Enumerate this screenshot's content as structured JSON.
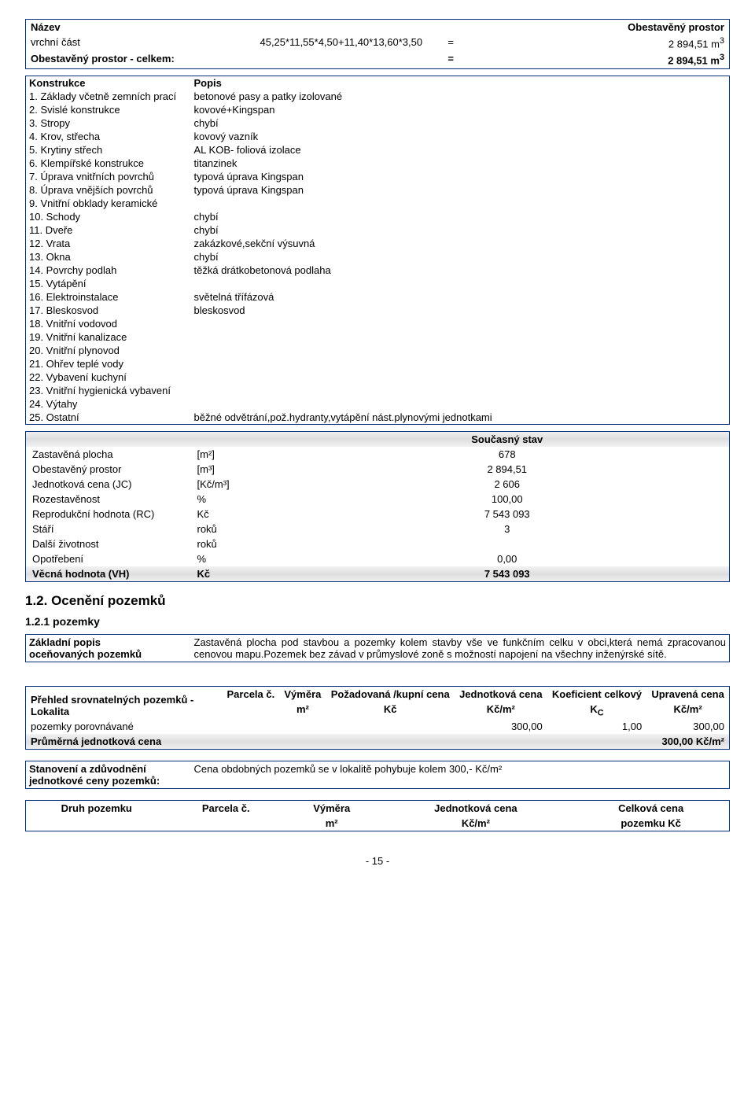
{
  "header_table": {
    "col_nazev": "Název",
    "col_obest": "Obestavěný prostor",
    "row1_label": "vrchní část",
    "row1_formula": "45,25*11,55*4,50+11,40*13,60*3,50",
    "row1_eq": "=",
    "row1_val": "2 894,51 m",
    "row1_sup": "3",
    "row2_label": "Obestavěný prostor - celkem:",
    "row2_eq": "=",
    "row2_val": "2 894,51 m",
    "row2_sup": "3"
  },
  "spec": {
    "col_konstrukce": "Konstrukce",
    "col_popis": "Popis",
    "items": [
      {
        "l": "1. Základy včetně zemních prací",
        "v": "betonové pasy a patky izolované"
      },
      {
        "l": "2. Svislé konstrukce",
        "v": "kovové+Kingspan"
      },
      {
        "l": "3. Stropy",
        "v": "chybí"
      },
      {
        "l": "4. Krov, střecha",
        "v": "kovový vazník"
      },
      {
        "l": "5. Krytiny střech",
        "v": "AL KOB- foliová izolace"
      },
      {
        "l": "6. Klempířské konstrukce",
        "v": "titanzinek"
      },
      {
        "l": "7. Úprava vnitřních povrchů",
        "v": "typová úprava Kingspan"
      },
      {
        "l": "8. Úprava vnějších povrchů",
        "v": "typová úprava Kingspan"
      },
      {
        "l": "9. Vnitřní obklady keramické",
        "v": ""
      },
      {
        "l": "10. Schody",
        "v": "chybí"
      },
      {
        "l": "11. Dveře",
        "v": "chybí"
      },
      {
        "l": "12. Vrata",
        "v": "zakázkové,sekční výsuvná"
      },
      {
        "l": "13. Okna",
        "v": "chybí"
      },
      {
        "l": "14. Povrchy podlah",
        "v": "těžká drátkobetonová podlaha"
      },
      {
        "l": "15. Vytápění",
        "v": ""
      },
      {
        "l": "16. Elektroinstalace",
        "v": "světelná třífázová"
      },
      {
        "l": "17. Bleskosvod",
        "v": "bleskosvod"
      },
      {
        "l": "18. Vnitřní vodovod",
        "v": ""
      },
      {
        "l": "19. Vnitřní kanalizace",
        "v": ""
      },
      {
        "l": "20. Vnitřní plynovod",
        "v": ""
      },
      {
        "l": "21. Ohřev teplé vody",
        "v": ""
      },
      {
        "l": "22. Vybavení kuchyní",
        "v": ""
      },
      {
        "l": "23. Vnitřní hygienická vybavení",
        "v": ""
      },
      {
        "l": "24. Výtahy",
        "v": ""
      },
      {
        "l": "25. Ostatní",
        "v": "běžné odvětrání,pož.hydranty,vytápění nást.plynovými jednotkami"
      }
    ]
  },
  "summary": {
    "state_label": "Současný stav",
    "rows": [
      {
        "l": "Zastavěná plocha",
        "u": "[m²]",
        "v": "678"
      },
      {
        "l": "Obestavěný prostor",
        "u": "[m³]",
        "v": "2 894,51"
      },
      {
        "l": "Jednotková cena (JC)",
        "u": "[Kč/m³]",
        "v": "2 606"
      },
      {
        "l": "Rozestavěnost",
        "u": "%",
        "v": "100,00"
      },
      {
        "l": "Reprodukční hodnota (RC)",
        "u": "Kč",
        "v": "7 543 093"
      },
      {
        "l": "Stáří",
        "u": "roků",
        "v": "3"
      },
      {
        "l": "Další životnost",
        "u": "roků",
        "v": ""
      },
      {
        "l": "Opotřebení",
        "u": "%",
        "v": "0,00"
      }
    ],
    "final_l": "Věcná hodnota (VH)",
    "final_u": "Kč",
    "final_v": "7 543 093"
  },
  "sec12": "1.2. Ocenění pozemků",
  "sec121": "1.2.1 pozemky",
  "base": {
    "l1": "Základní popis",
    "l2": "oceňovaných pozemků",
    "text": "Zastavěná plocha pod stavbou a pozemky kolem stavby vše ve funkčním celku v obci,která nemá zpracovanou cenovou mapu.Pozemek bez závad v průmyslové zoně s možností napojení na všechny inženýrské sítě."
  },
  "comp": {
    "h1": "Přehled srovnatelných pozemků - Lokalita",
    "h2": "Parcela č.",
    "h3": "Výměra",
    "h3b": "m²",
    "h4": "Požadovaná /kupní cena",
    "h4b": "Kč",
    "h5": "Jednotková cena",
    "h5b": "Kč/m²",
    "h6": "Koeficient celkový",
    "h6b": "K",
    "h6c": "C",
    "h7": "Upravená cena",
    "h7b": "Kč/m²",
    "r1_l": "pozemky porovnávané",
    "r1_v1": "300,00",
    "r1_v2": "1,00",
    "r1_v3": "300,00",
    "r2_l": "Průměrná jednotková cena",
    "r2_v": "300,00 Kč/m²"
  },
  "stan": {
    "l1": "Stanovení a zdůvodnění",
    "l2": "jednotkové ceny pozemků:",
    "text": "Cena obdobných pozemků se v lokalitě pohybuje kolem 300,- Kč/m²"
  },
  "druh": {
    "c1": "Druh pozemku",
    "c2": "Parcela č.",
    "c3": "Výměra",
    "c3b": "m²",
    "c4": "Jednotková cena",
    "c4b": "Kč/m²",
    "c5": "Celková cena",
    "c5b": "pozemku Kč"
  },
  "foot": "- 15 -"
}
